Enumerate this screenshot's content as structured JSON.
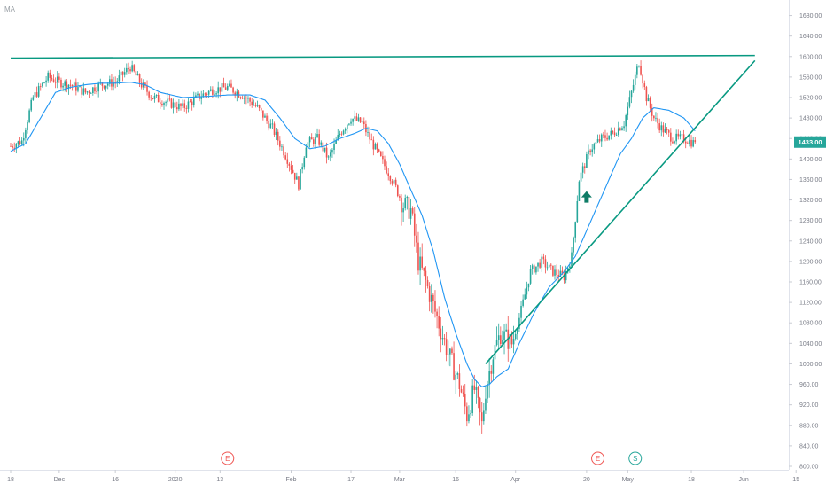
{
  "indicator_label": "MA",
  "chart_data": {
    "type": "candlestick",
    "title": "",
    "xlabel": "",
    "ylabel": "",
    "ylim": [
      800,
      1700
    ],
    "grid": false,
    "y_ticks": [
      "800.00",
      "840.00",
      "880.00",
      "920.00",
      "960.00",
      "1000.00",
      "1040.00",
      "1080.00",
      "1120.00",
      "1160.00",
      "1200.00",
      "1240.00",
      "1280.00",
      "1320.00",
      "1360.00",
      "1400.00",
      "1440.00",
      "1480.00",
      "1520.00",
      "1560.00",
      "1600.00",
      "1640.00",
      "1680.00"
    ],
    "x_ticks": [
      {
        "label": "18",
        "day": 0
      },
      {
        "label": "Dec",
        "day": 13
      },
      {
        "label": "16",
        "day": 28
      },
      {
        "label": "2020",
        "day": 44
      },
      {
        "label": "13",
        "day": 56
      },
      {
        "label": "Feb",
        "day": 75
      },
      {
        "label": "17",
        "day": 91
      },
      {
        "label": "Mar",
        "day": 104
      },
      {
        "label": "16",
        "day": 119
      },
      {
        "label": "Apr",
        "day": 135
      },
      {
        "label": "20",
        "day": 154
      },
      {
        "label": "May",
        "day": 165
      },
      {
        "label": "18",
        "day": 182
      },
      {
        "label": "Jun",
        "day": 196
      },
      {
        "label": "15",
        "day": 210
      }
    ],
    "price_keypoints": [
      [
        0,
        1425
      ],
      [
        3,
        1435
      ],
      [
        6,
        1520
      ],
      [
        10,
        1560
      ],
      [
        13,
        1550
      ],
      [
        16,
        1545
      ],
      [
        20,
        1530
      ],
      [
        24,
        1545
      ],
      [
        28,
        1550
      ],
      [
        32,
        1580
      ],
      [
        35,
        1545
      ],
      [
        38,
        1520
      ],
      [
        42,
        1510
      ],
      [
        46,
        1500
      ],
      [
        50,
        1520
      ],
      [
        54,
        1535
      ],
      [
        58,
        1540
      ],
      [
        62,
        1525
      ],
      [
        66,
        1500
      ],
      [
        70,
        1460
      ],
      [
        74,
        1400
      ],
      [
        77,
        1350
      ],
      [
        79,
        1430
      ],
      [
        82,
        1440
      ],
      [
        85,
        1400
      ],
      [
        88,
        1450
      ],
      [
        91,
        1480
      ],
      [
        94,
        1470
      ],
      [
        96,
        1440
      ],
      [
        99,
        1400
      ],
      [
        102,
        1360
      ],
      [
        105,
        1310
      ],
      [
        107,
        1300
      ],
      [
        109,
        1200
      ],
      [
        111,
        1160
      ],
      [
        114,
        1090
      ],
      [
        117,
        1020
      ],
      [
        120,
        960
      ],
      [
        122,
        900
      ],
      [
        124,
        950
      ],
      [
        126,
        880
      ],
      [
        127,
        950
      ],
      [
        129,
        1020
      ],
      [
        131,
        1060
      ],
      [
        134,
        1040
      ],
      [
        136,
        1090
      ],
      [
        139,
        1180
      ],
      [
        142,
        1200
      ],
      [
        145,
        1180
      ],
      [
        148,
        1170
      ],
      [
        150,
        1210
      ],
      [
        152,
        1360
      ],
      [
        155,
        1420
      ],
      [
        158,
        1440
      ],
      [
        161,
        1450
      ],
      [
        164,
        1470
      ],
      [
        167,
        1560
      ],
      [
        168,
        1590
      ],
      [
        170,
        1520
      ],
      [
        172,
        1480
      ],
      [
        174,
        1460
      ],
      [
        177,
        1440
      ],
      [
        180,
        1440
      ],
      [
        183,
        1430
      ]
    ],
    "ma_keypoints": [
      [
        0,
        1415
      ],
      [
        4,
        1430
      ],
      [
        8,
        1480
      ],
      [
        12,
        1530
      ],
      [
        16,
        1540
      ],
      [
        20,
        1545
      ],
      [
        24,
        1548
      ],
      [
        28,
        1548
      ],
      [
        32,
        1550
      ],
      [
        36,
        1545
      ],
      [
        40,
        1530
      ],
      [
        46,
        1520
      ],
      [
        52,
        1522
      ],
      [
        58,
        1525
      ],
      [
        64,
        1525
      ],
      [
        68,
        1515
      ],
      [
        72,
        1480
      ],
      [
        76,
        1440
      ],
      [
        80,
        1420
      ],
      [
        84,
        1425
      ],
      [
        88,
        1440
      ],
      [
        92,
        1450
      ],
      [
        95,
        1460
      ],
      [
        98,
        1455
      ],
      [
        101,
        1430
      ],
      [
        104,
        1390
      ],
      [
        107,
        1340
      ],
      [
        110,
        1290
      ],
      [
        113,
        1220
      ],
      [
        116,
        1130
      ],
      [
        119,
        1060
      ],
      [
        122,
        1000
      ],
      [
        124,
        970
      ],
      [
        126,
        955
      ],
      [
        128,
        960
      ],
      [
        130,
        975
      ],
      [
        133,
        990
      ],
      [
        136,
        1040
      ],
      [
        140,
        1100
      ],
      [
        144,
        1150
      ],
      [
        148,
        1180
      ],
      [
        151,
        1210
      ],
      [
        154,
        1260
      ],
      [
        157,
        1310
      ],
      [
        160,
        1360
      ],
      [
        163,
        1410
      ],
      [
        166,
        1440
      ],
      [
        169,
        1480
      ],
      [
        172,
        1500
      ],
      [
        176,
        1495
      ],
      [
        180,
        1480
      ],
      [
        183,
        1455
      ]
    ],
    "last_price": "1433.00",
    "resistance_line": {
      "start": {
        "day": 0,
        "price": 1597
      },
      "end": {
        "day": 199,
        "price": 1602
      }
    },
    "support_line": {
      "start": {
        "day": 127,
        "price": 1000
      },
      "end": {
        "day": 199,
        "price": 1592
      }
    },
    "events": [
      {
        "label": "E",
        "day": 58
      },
      {
        "label": "E",
        "day": 157
      },
      {
        "label": "S",
        "day": 167
      }
    ],
    "arrow": {
      "day": 154,
      "price": 1325,
      "direction": "up"
    },
    "colors": {
      "up": "#26a69a",
      "down": "#ef5350",
      "ma": "#2196f3",
      "trendline": "#089981",
      "price_label_bg": "#26a69a",
      "event_circle": "#ef5350",
      "split_circle": "#26a69a"
    }
  }
}
